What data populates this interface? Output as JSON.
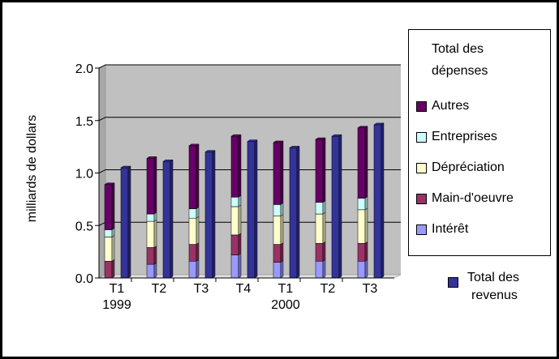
{
  "chart_data": {
    "type": "bar",
    "ylabel": "milliards de dollars",
    "ylim": [
      0,
      2.0
    ],
    "yticks": [
      "0.0",
      "0.5",
      "1.0",
      "1.5",
      "2.0"
    ],
    "categories": [
      "T1",
      "T2",
      "T3",
      "T4",
      "T1",
      "T2",
      "T3"
    ],
    "year_labels": [
      "1999",
      "",
      "",
      "",
      "2000",
      "",
      ""
    ],
    "expense_legend_title": [
      "Total des",
      "dépenses"
    ],
    "expense_series": [
      {
        "name": "Intérêt",
        "color": "#9999ff",
        "values": [
          0.0,
          0.13,
          0.16,
          0.22,
          0.15,
          0.16,
          0.16
        ]
      },
      {
        "name": "Main-d'oeuvre",
        "color": "#993366",
        "values": [
          0.16,
          0.16,
          0.16,
          0.19,
          0.17,
          0.17,
          0.17
        ]
      },
      {
        "name": "Dépréciation",
        "color": "#ffffcc",
        "values": [
          0.23,
          0.25,
          0.25,
          0.27,
          0.27,
          0.28,
          0.32
        ]
      },
      {
        "name": "Entreprises",
        "color": "#ccffff",
        "values": [
          0.07,
          0.07,
          0.09,
          0.09,
          0.11,
          0.11,
          0.11
        ]
      },
      {
        "name": "Autres",
        "color": "#660066",
        "values": [
          0.43,
          0.53,
          0.6,
          0.58,
          0.59,
          0.6,
          0.67
        ]
      }
    ],
    "revenue_series": {
      "name_lines": [
        "Total des",
        "revenus"
      ],
      "color": "#333399",
      "values": [
        1.05,
        1.11,
        1.2,
        1.3,
        1.24,
        1.35,
        1.46
      ]
    },
    "plot_background": "#c0c0c0",
    "grid": true,
    "legend_position": "right"
  }
}
